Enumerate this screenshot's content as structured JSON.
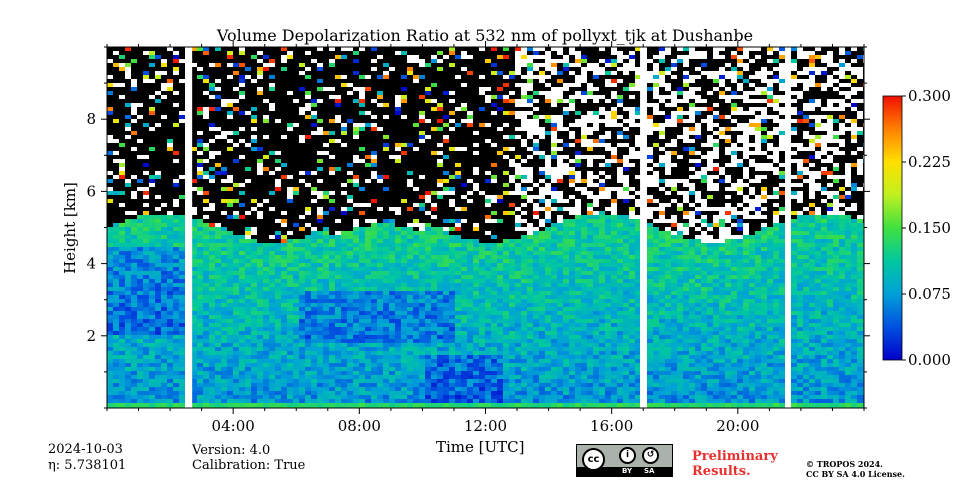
{
  "chart_data": {
    "type": "heatmap",
    "title": "Volume Depolarization Ratio at 532 nm of pollyxt_tjk at Dushanbe",
    "xlabel": "Time [UTC]",
    "ylabel": "Height [km]",
    "xlim_hours": [
      0,
      24
    ],
    "ylim_km": [
      0,
      10
    ],
    "x_ticks": [
      {
        "hour": 4,
        "label": "04:00"
      },
      {
        "hour": 8,
        "label": "08:00"
      },
      {
        "hour": 12,
        "label": "12:00"
      },
      {
        "hour": 16,
        "label": "16:00"
      },
      {
        "hour": 20,
        "label": "20:00"
      }
    ],
    "y_ticks": [
      {
        "km": 2,
        "label": "2"
      },
      {
        "km": 4,
        "label": "4"
      },
      {
        "km": 6,
        "label": "6"
      },
      {
        "km": 8,
        "label": "8"
      }
    ],
    "colorbar": {
      "min": 0.0,
      "max": 0.3,
      "ticks": [
        {
          "value": 0.0,
          "label": "0.000"
        },
        {
          "value": 0.075,
          "label": "0.075"
        },
        {
          "value": 0.15,
          "label": "0.150"
        },
        {
          "value": 0.225,
          "label": "0.225"
        },
        {
          "value": 0.3,
          "label": "0.300"
        }
      ],
      "colormap": [
        "#0000c8",
        "#0050e0",
        "#00a0d8",
        "#00c8a0",
        "#40e040",
        "#c0f020",
        "#ffe000",
        "#ff8000",
        "#f01000"
      ]
    },
    "data_gaps_hours": [
      [
        2.5,
        2.7
      ],
      [
        16.9,
        17.05
      ],
      [
        21.5,
        21.65
      ]
    ],
    "cloud_top_km_approx": 5.0,
    "description_layers": [
      {
        "from_hour": 0,
        "to_hour": 24,
        "layer": "aerosol",
        "top_km": 4.8,
        "depol_range": [
          0.05,
          0.15
        ]
      }
    ]
  },
  "meta": {
    "date": "2024-10-03",
    "eta_label": "η: 5.738101",
    "version": "Version: 4.0",
    "calibration": "Calibration: True",
    "prelim_line1": "Preliminary",
    "prelim_line2": "Results.",
    "copyright_line1": "© TROPOS 2024.",
    "copyright_line2": "CC BY SA 4.0 License.",
    "license_badge": {
      "cc": "cc",
      "by": "BY",
      "sa": "SA"
    }
  }
}
